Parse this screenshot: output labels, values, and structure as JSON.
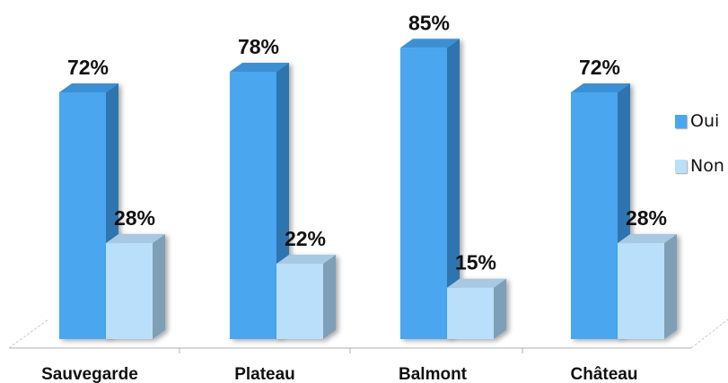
{
  "chart_data": {
    "type": "bar",
    "categories": [
      "Sauvegarde",
      "Plateau",
      "Balmont",
      "Château"
    ],
    "series": [
      {
        "name": "Oui",
        "values": [
          72,
          78,
          85,
          72
        ],
        "labels": [
          "72%",
          "78%",
          "85%",
          "72%"
        ],
        "color": "#4aa6ef"
      },
      {
        "name": "Non",
        "values": [
          28,
          22,
          15,
          28
        ],
        "labels": [
          "28%",
          "22%",
          "15%",
          "28%"
        ],
        "color": "#b9dffb"
      }
    ],
    "ylim": [
      0,
      100
    ],
    "legend_position": "right",
    "grid": false
  },
  "legend": {
    "oui_label": "Oui",
    "non_label": "Non"
  }
}
